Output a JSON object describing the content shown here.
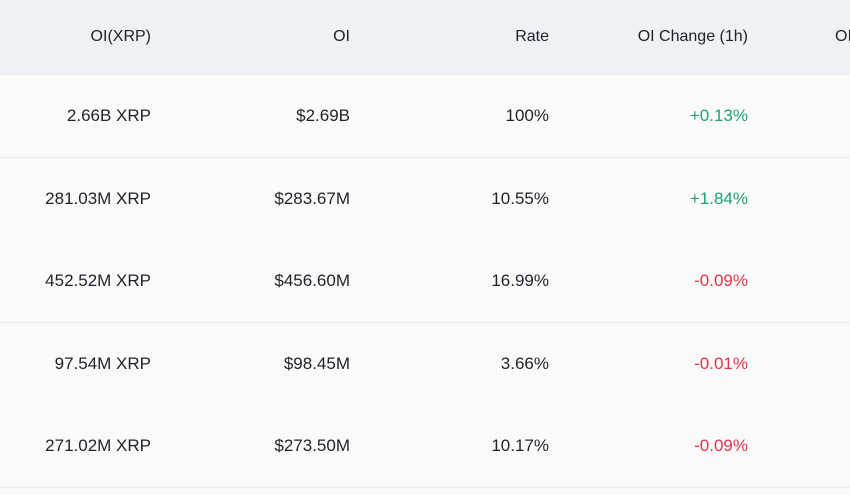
{
  "table": {
    "columns": [
      "OI(XRP)",
      "OI",
      "Rate",
      "OI Change (1h)",
      "OI"
    ],
    "rows": [
      {
        "oi_xrp": "2.66B XRP",
        "oi": "$2.69B",
        "rate": "100%",
        "change": "+0.13%",
        "direction": "up"
      },
      {
        "oi_xrp": "281.03M XRP",
        "oi": "$283.67M",
        "rate": "10.55%",
        "change": "+1.84%",
        "direction": "up"
      },
      {
        "oi_xrp": "452.52M XRP",
        "oi": "$456.60M",
        "rate": "16.99%",
        "change": "-0.09%",
        "direction": "down"
      },
      {
        "oi_xrp": "97.54M XRP",
        "oi": "$98.45M",
        "rate": "3.66%",
        "change": "-0.01%",
        "direction": "down"
      },
      {
        "oi_xrp": "271.02M XRP",
        "oi": "$273.50M",
        "rate": "10.17%",
        "change": "-0.09%",
        "direction": "down"
      }
    ]
  },
  "colors": {
    "header_bg": "#eef1f5",
    "row_bg": "#fafafa",
    "positive": "#1ba27a",
    "negative": "#e0344b",
    "text": "#1e2329"
  }
}
